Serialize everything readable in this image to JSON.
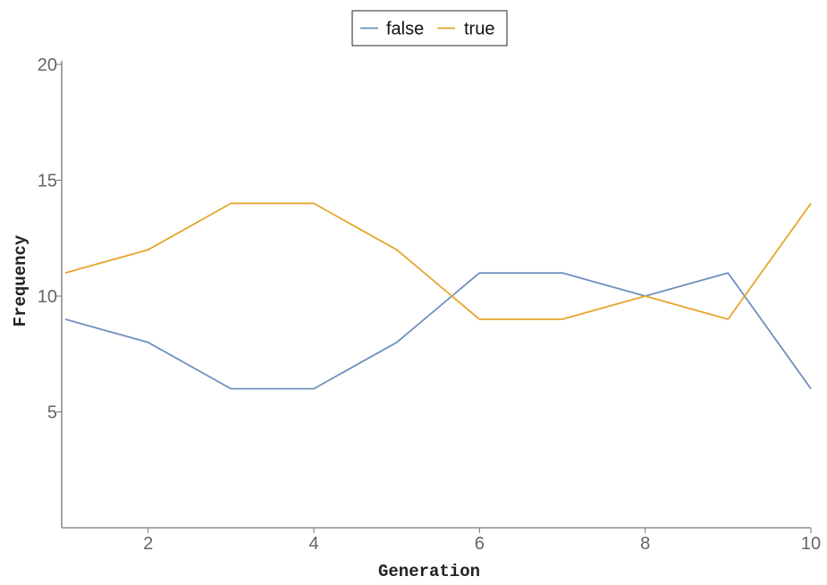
{
  "chart_data": {
    "type": "line",
    "xlabel": "Generation",
    "ylabel": "Frequency",
    "xlim": [
      1,
      10
    ],
    "ylim": [
      0,
      20
    ],
    "x_ticks": [
      2,
      4,
      6,
      8,
      10
    ],
    "y_ticks": [
      5,
      10,
      15,
      20
    ],
    "grid": false,
    "legend_position": "top-center",
    "x": [
      1,
      2,
      3,
      4,
      5,
      6,
      7,
      8,
      9,
      10
    ],
    "series": [
      {
        "name": "false",
        "color": "#6f8fbf",
        "values": [
          9,
          8,
          6,
          6,
          8,
          11,
          11,
          10,
          11,
          6
        ]
      },
      {
        "name": "true",
        "color": "#e6a52a",
        "values": [
          11,
          12,
          14,
          14,
          12,
          9,
          9,
          10,
          9,
          14
        ]
      }
    ]
  }
}
